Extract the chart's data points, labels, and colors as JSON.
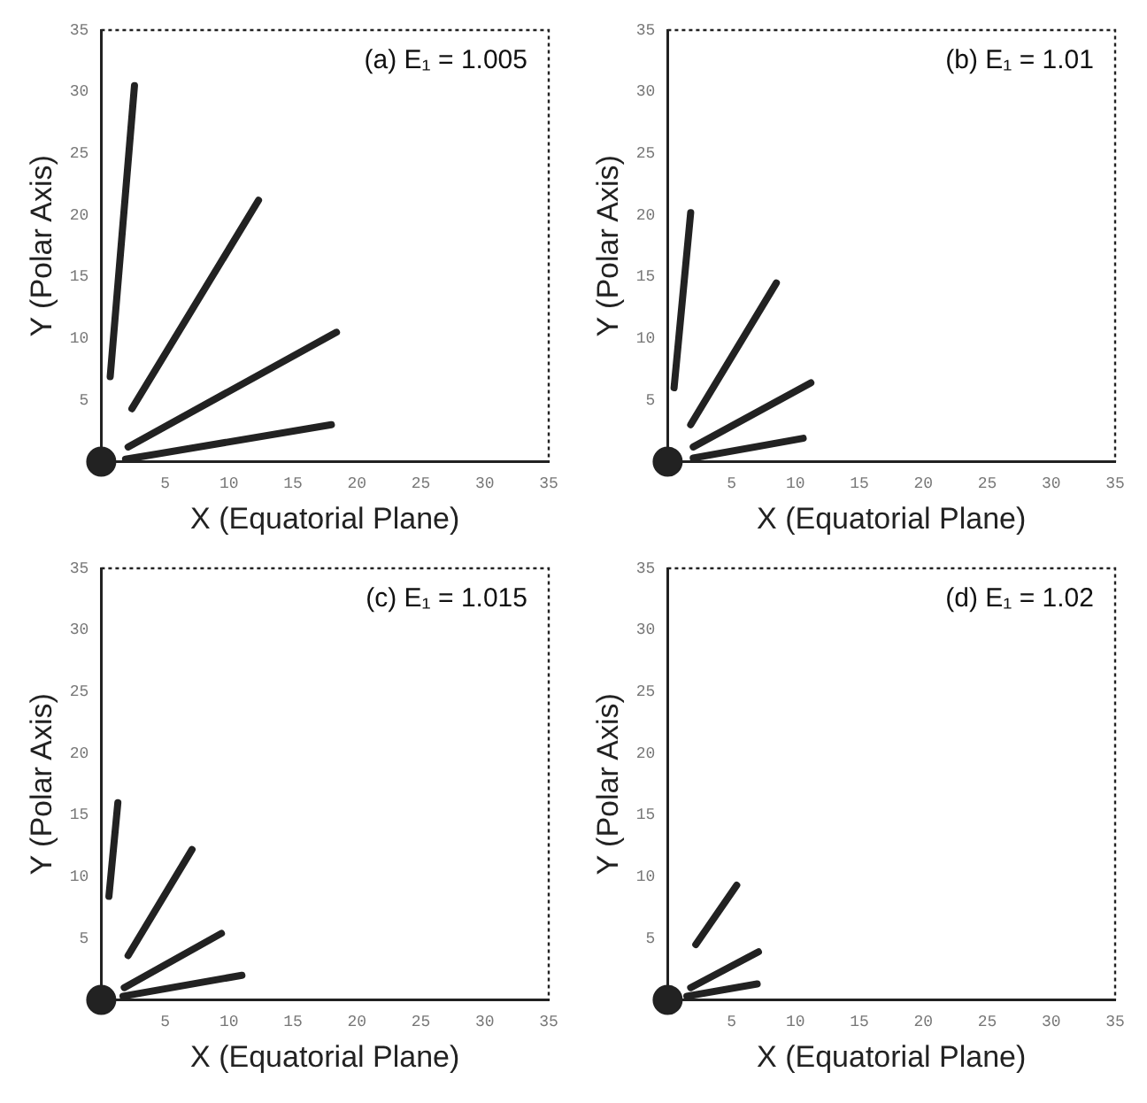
{
  "chart_data": [
    {
      "type": "line",
      "title": "(a) E₁ = 1.005",
      "xlabel": "X (Equatorial Plane)",
      "ylabel": "Y (Polar Axis)",
      "xlim": [
        0,
        35
      ],
      "ylim": [
        0,
        35
      ],
      "xticks": [
        5,
        10,
        15,
        20,
        25,
        30,
        35
      ],
      "yticks": [
        5,
        10,
        15,
        20,
        25,
        30,
        35
      ],
      "marker": "none",
      "line_style": "solid",
      "series": [
        {
          "color": "#222222",
          "x": [
            0.7,
            2.6
          ],
          "values": [
            6.9,
            30.5
          ]
        },
        {
          "color": "#222222",
          "x": [
            2.4,
            12.3
          ],
          "values": [
            4.3,
            21.2
          ]
        },
        {
          "color": "#222222",
          "x": [
            2.1,
            18.4
          ],
          "values": [
            1.2,
            10.5
          ]
        },
        {
          "color": "#222222",
          "x": [
            1.9,
            18
          ],
          "values": [
            0.2,
            3.0
          ]
        },
        {
          "type": "scatter",
          "marker": "circle",
          "color": "#222222",
          "x": [
            0
          ],
          "values": [
            0
          ]
        }
      ]
    },
    {
      "type": "line",
      "title": "(b) E₁ = 1.01",
      "xlabel": "X (Equatorial Plane)",
      "ylabel": "Y (Polar Axis)",
      "xlim": [
        0,
        35
      ],
      "ylim": [
        0,
        35
      ],
      "xticks": [
        5,
        10,
        15,
        20,
        25,
        30,
        35
      ],
      "yticks": [
        5,
        10,
        15,
        20,
        25,
        30,
        35
      ],
      "marker": "none",
      "line_style": "solid",
      "series": [
        {
          "color": "#222222",
          "x": [
            0.5,
            1.8
          ],
          "values": [
            6,
            20.2
          ]
        },
        {
          "color": "#222222",
          "x": [
            1.8,
            8.5
          ],
          "values": [
            3,
            14.5
          ]
        },
        {
          "color": "#222222",
          "x": [
            2,
            11.2
          ],
          "values": [
            1.2,
            6.4
          ]
        },
        {
          "color": "#222222",
          "x": [
            2,
            10.6
          ],
          "values": [
            0.3,
            1.9
          ]
        },
        {
          "type": "scatter",
          "marker": "circle",
          "color": "#222222",
          "x": [
            0
          ],
          "values": [
            0
          ]
        }
      ]
    },
    {
      "type": "line",
      "title": "(c) E₁ = 1.015",
      "xlabel": "X (Equatorial Plane)",
      "ylabel": "Y (Polar Axis)",
      "xlim": [
        0,
        35
      ],
      "ylim": [
        0,
        35
      ],
      "xticks": [
        5,
        10,
        15,
        20,
        25,
        30,
        35
      ],
      "yticks": [
        5,
        10,
        15,
        20,
        25,
        30,
        35
      ],
      "marker": "none",
      "line_style": "solid",
      "series": [
        {
          "color": "#222222",
          "x": [
            0.6,
            1.3
          ],
          "values": [
            8.4,
            16
          ]
        },
        {
          "color": "#222222",
          "x": [
            2.1,
            7.1
          ],
          "values": [
            3.6,
            12.2
          ]
        },
        {
          "color": "#222222",
          "x": [
            1.8,
            9.4
          ],
          "values": [
            1,
            5.4
          ]
        },
        {
          "color": "#222222",
          "x": [
            1.7,
            11
          ],
          "values": [
            0.3,
            2
          ]
        },
        {
          "type": "scatter",
          "marker": "circle",
          "color": "#222222",
          "x": [
            0
          ],
          "values": [
            0
          ]
        }
      ]
    },
    {
      "type": "line",
      "title": "(d) E₁ = 1.02",
      "xlabel": "X (Equatorial Plane)",
      "ylabel": "Y (Polar Axis)",
      "xlim": [
        0,
        35
      ],
      "ylim": [
        0,
        35
      ],
      "xticks": [
        5,
        10,
        15,
        20,
        25,
        30,
        35
      ],
      "yticks": [
        5,
        10,
        15,
        20,
        25,
        30,
        35
      ],
      "marker": "none",
      "line_style": "solid",
      "series": [
        {
          "color": "#222222",
          "x": [
            2.2,
            5.4
          ],
          "values": [
            4.5,
            9.3
          ]
        },
        {
          "color": "#222222",
          "x": [
            1.8,
            7.1
          ],
          "values": [
            1,
            3.9
          ]
        },
        {
          "color": "#222222",
          "x": [
            1.5,
            7
          ],
          "values": [
            0.3,
            1.3
          ]
        },
        {
          "type": "scatter",
          "marker": "circle",
          "color": "#222222",
          "x": [
            0
          ],
          "values": [
            0
          ]
        }
      ]
    }
  ]
}
